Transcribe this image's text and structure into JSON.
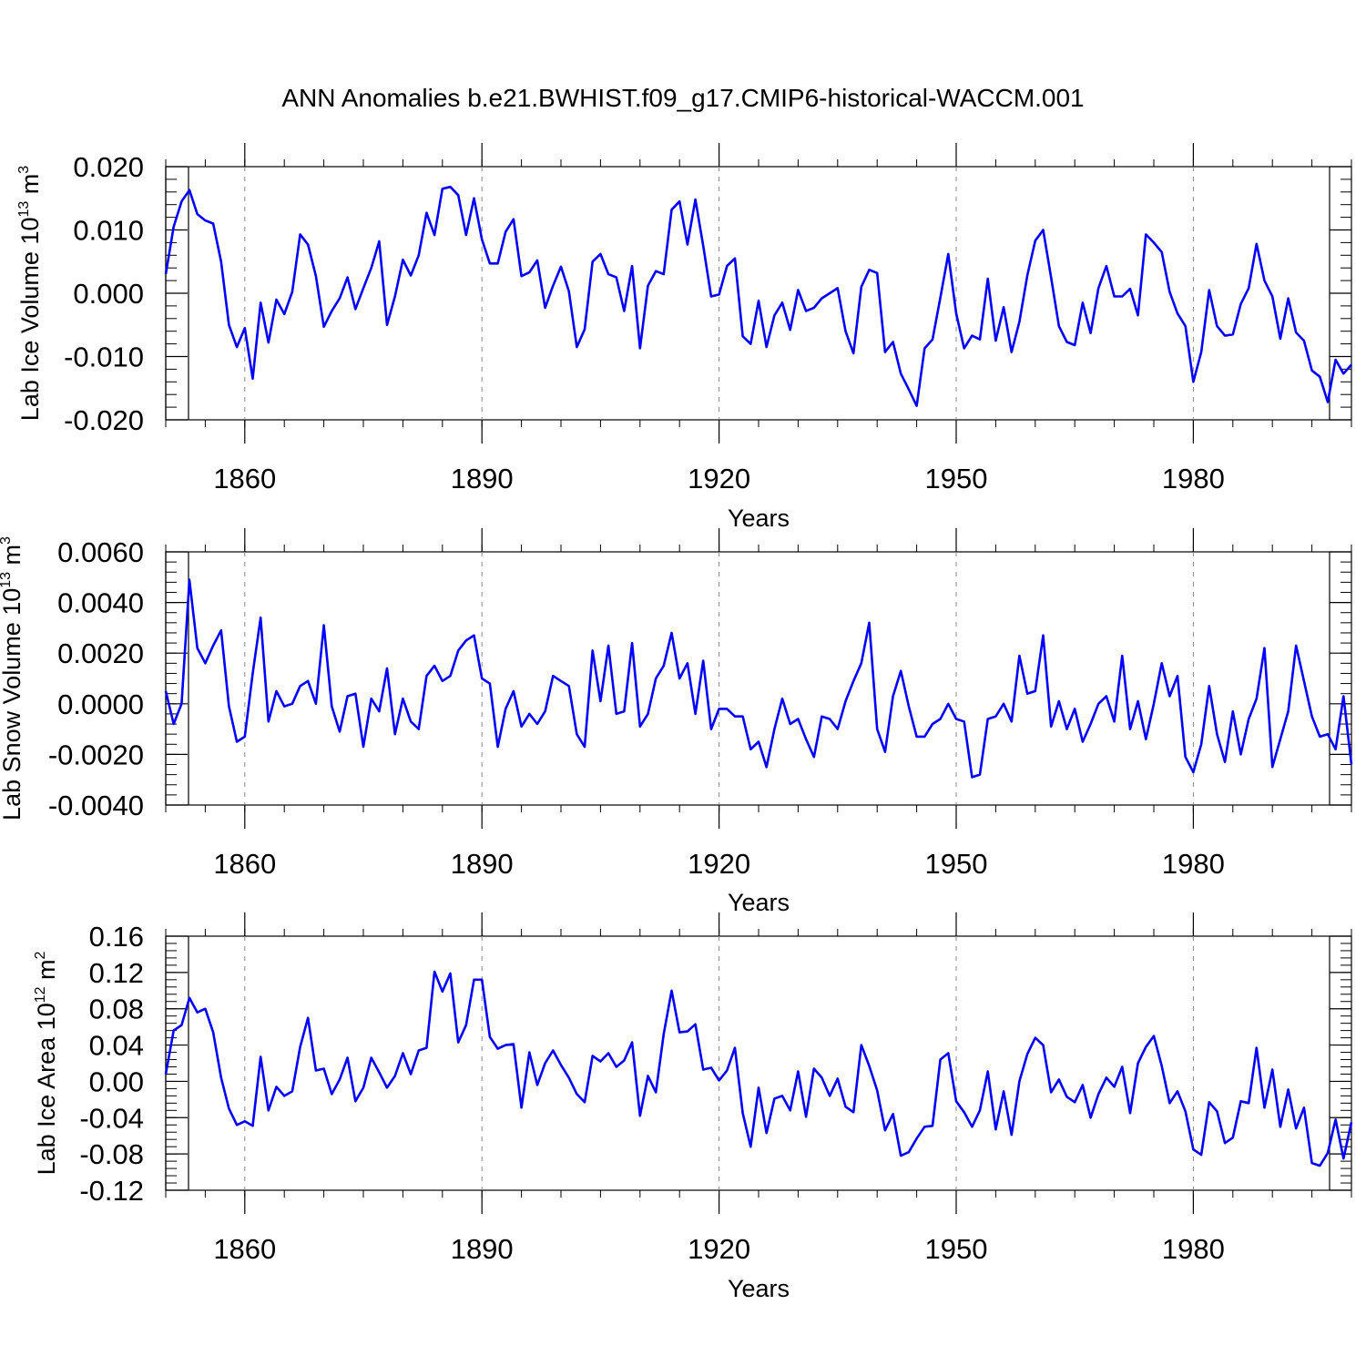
{
  "title": "ANN Anomalies b.e21.BWHIST.f09_g17.CMIP6-historical-WACCM.001",
  "chart_data": [
    {
      "type": "line",
      "ylabel": "Lab Ice Volume 10",
      "ylabel_exp": "13",
      "ylabel_unit": "m",
      "ylabel_unit_exp": "3",
      "xlabel": "Years",
      "xlim": [
        1850,
        2000
      ],
      "ylim": [
        -0.02,
        0.02
      ],
      "yticks": [
        -0.02,
        -0.01,
        0.0,
        0.01,
        0.02
      ],
      "ytick_labels": [
        "-0.020",
        "-0.010",
        "0.000",
        "0.010",
        "0.020"
      ],
      "xticks": [
        1860,
        1890,
        1920,
        1950,
        1980
      ],
      "xtick_labels": [
        "1860",
        "1890",
        "1920",
        "1950",
        "1980"
      ],
      "color": "#0000ff",
      "x_start": 1850,
      "values": [
        0.003,
        0.0105,
        0.0145,
        0.0163,
        0.0125,
        0.0115,
        0.011,
        0.005,
        -0.005,
        -0.0085,
        -0.0055,
        -0.0135,
        -0.0015,
        -0.0078,
        -0.001,
        -0.0033,
        0.0002,
        0.0093,
        0.0077,
        0.0027,
        -0.0053,
        -0.0028,
        -0.0008,
        0.0025,
        -0.0025,
        0.0008,
        0.004,
        0.0082,
        -0.005,
        -0.0005,
        0.0053,
        0.0028,
        0.006,
        0.0127,
        0.0092,
        0.0165,
        0.0168,
        0.0155,
        0.0092,
        0.015,
        0.0085,
        0.0047,
        0.0047,
        0.0097,
        0.0117,
        0.0027,
        0.0033,
        0.0052,
        -0.0023,
        0.0012,
        0.0042,
        0.0003,
        -0.0085,
        -0.0057,
        0.005,
        0.0062,
        0.003,
        0.0025,
        -0.0028,
        0.0043,
        -0.0087,
        0.0012,
        0.0035,
        0.003,
        0.0132,
        0.0145,
        0.0077,
        0.0148,
        0.0075,
        -0.0005,
        -0.0002,
        0.0043,
        0.0055,
        -0.0068,
        -0.008,
        -0.0012,
        -0.0085,
        -0.0035,
        -0.0015,
        -0.0058,
        0.0005,
        -0.0028,
        -0.0023,
        -0.0008,
        0.0,
        0.0008,
        -0.006,
        -0.0095,
        0.001,
        0.0037,
        0.0032,
        -0.0093,
        -0.0077,
        -0.0127,
        -0.0152,
        -0.0178,
        -0.0087,
        -0.0073,
        -0.0007,
        0.0062,
        -0.0032,
        -0.0087,
        -0.0067,
        -0.0073,
        0.0023,
        -0.0075,
        -0.0022,
        -0.0093,
        -0.0045,
        0.0028,
        0.0083,
        0.01,
        0.0025,
        -0.0052,
        -0.0077,
        -0.0082,
        -0.0015,
        -0.0063,
        0.0008,
        0.0043,
        -0.0005,
        -0.0005,
        0.0007,
        -0.0035,
        0.0093,
        0.008,
        0.0065,
        0.0002,
        -0.0032,
        -0.0052,
        -0.014,
        -0.0093,
        0.0005,
        -0.0052,
        -0.0067,
        -0.0065,
        -0.0017,
        0.0008,
        0.0078,
        0.002,
        -0.0005,
        -0.0072,
        -0.0008,
        -0.0062,
        -0.0075,
        -0.0122,
        -0.0132,
        -0.0172,
        -0.0105,
        -0.0127,
        -0.0113
      ]
    },
    {
      "type": "line",
      "ylabel": "Lab Snow Volume 10",
      "ylabel_exp": "13",
      "ylabel_unit": "m",
      "ylabel_unit_exp": "3",
      "xlabel": "Years",
      "xlim": [
        1850,
        2000
      ],
      "ylim": [
        -0.004,
        0.006
      ],
      "yticks": [
        -0.004,
        -0.002,
        0.0,
        0.002,
        0.004,
        0.006
      ],
      "ytick_labels": [
        "-0.0040",
        "-0.0020",
        "0.0000",
        "0.0020",
        "0.0040",
        "0.0060"
      ],
      "xticks": [
        1860,
        1890,
        1920,
        1950,
        1980
      ],
      "xtick_labels": [
        "1860",
        "1890",
        "1920",
        "1950",
        "1980"
      ],
      "color": "#0000ff",
      "x_start": 1850,
      "values": [
        0.0005,
        -0.0008,
        0.0,
        0.0049,
        0.0022,
        0.0016,
        0.0023,
        0.0029,
        -0.0001,
        -0.0015,
        -0.0013,
        0.0012,
        0.0034,
        -0.0007,
        0.0005,
        -0.0001,
        0.0,
        0.0007,
        0.0009,
        0.0,
        0.0031,
        -0.0001,
        -0.0011,
        0.0003,
        0.0004,
        -0.0017,
        0.0002,
        -0.0003,
        0.0014,
        -0.0012,
        0.0002,
        -0.0007,
        -0.001,
        0.0011,
        0.0015,
        0.0009,
        0.0011,
        0.0021,
        0.0025,
        0.0027,
        0.001,
        0.0008,
        -0.0017,
        -0.0002,
        0.0005,
        -0.0009,
        -0.0004,
        -0.0008,
        -0.0003,
        0.0011,
        0.0009,
        0.0007,
        -0.0012,
        -0.0017,
        0.0021,
        0.0001,
        0.0023,
        -0.0004,
        -0.0003,
        0.0024,
        -0.0009,
        -0.0004,
        0.001,
        0.0015,
        0.0028,
        0.001,
        0.0016,
        -0.0004,
        0.0017,
        -0.001,
        -0.0002,
        -0.0002,
        -0.0005,
        -0.0005,
        -0.0018,
        -0.0015,
        -0.0025,
        -0.001,
        0.0002,
        -0.0008,
        -0.0006,
        -0.0014,
        -0.0021,
        -0.0005,
        -0.0006,
        -0.001,
        0.0001,
        0.0009,
        0.0016,
        0.0032,
        -0.001,
        -0.0019,
        0.0003,
        0.0013,
        -0.0001,
        -0.0013,
        -0.0013,
        -0.0008,
        -0.0006,
        0.0,
        -0.0006,
        -0.0007,
        -0.0029,
        -0.0028,
        -0.0006,
        -0.0005,
        0.0,
        -0.0007,
        0.0019,
        0.0004,
        0.0005,
        0.0027,
        -0.0009,
        0.0001,
        -0.001,
        -0.0002,
        -0.0015,
        -0.0008,
        0.0,
        0.0003,
        -0.0007,
        0.0019,
        -0.001,
        0.0001,
        -0.0014,
        0.0,
        0.0016,
        0.0003,
        0.0011,
        -0.0021,
        -0.0027,
        -0.0016,
        0.0007,
        -0.0012,
        -0.0023,
        -0.0003,
        -0.002,
        -0.0006,
        0.0002,
        0.0022,
        -0.0025,
        -0.0014,
        -0.0003,
        0.0023,
        0.0009,
        -0.0005,
        -0.0013,
        -0.0012,
        -0.0018,
        0.0003,
        -0.0024
      ]
    },
    {
      "type": "line",
      "ylabel": "Lab Ice Area 10",
      "ylabel_exp": "12",
      "ylabel_unit": "m",
      "ylabel_unit_exp": "2",
      "xlabel": "Years",
      "xlim": [
        1850,
        2000
      ],
      "ylim": [
        -0.12,
        0.16
      ],
      "yticks": [
        -0.12,
        -0.08,
        -0.04,
        0.0,
        0.04,
        0.08,
        0.12,
        0.16
      ],
      "ytick_labels": [
        "-0.12",
        "-0.08",
        "-0.04",
        "0.00",
        "0.04",
        "0.08",
        "0.12",
        "0.16"
      ],
      "xticks": [
        1860,
        1890,
        1920,
        1950,
        1980
      ],
      "xtick_labels": [
        "1860",
        "1890",
        "1920",
        "1950",
        "1980"
      ],
      "color": "#0000ff",
      "x_start": 1850,
      "values": [
        0.008,
        0.056,
        0.062,
        0.092,
        0.076,
        0.08,
        0.054,
        0.004,
        -0.03,
        -0.048,
        -0.044,
        -0.049,
        0.027,
        -0.032,
        -0.006,
        -0.016,
        -0.011,
        0.038,
        0.07,
        0.012,
        0.014,
        -0.014,
        0.002,
        0.026,
        -0.022,
        -0.007,
        0.026,
        0.01,
        -0.007,
        0.006,
        0.031,
        0.008,
        0.034,
        0.037,
        0.121,
        0.099,
        0.119,
        0.043,
        0.062,
        0.112,
        0.112,
        0.049,
        0.036,
        0.04,
        0.041,
        -0.029,
        0.032,
        -0.004,
        0.02,
        0.034,
        0.018,
        0.004,
        -0.014,
        -0.023,
        0.028,
        0.022,
        0.031,
        0.016,
        0.023,
        0.043,
        -0.038,
        0.006,
        -0.012,
        0.052,
        0.1,
        0.054,
        0.055,
        0.063,
        0.013,
        0.015,
        0.001,
        0.012,
        0.037,
        -0.035,
        -0.072,
        -0.007,
        -0.057,
        -0.019,
        -0.016,
        -0.032,
        0.011,
        -0.039,
        0.014,
        0.004,
        -0.016,
        0.003,
        -0.028,
        -0.034,
        0.04,
        0.017,
        -0.01,
        -0.054,
        -0.036,
        -0.082,
        -0.078,
        -0.063,
        -0.05,
        -0.049,
        0.024,
        0.031,
        -0.022,
        -0.034,
        -0.05,
        -0.032,
        0.011,
        -0.053,
        -0.011,
        -0.059,
        0.0,
        0.03,
        0.048,
        0.04,
        -0.012,
        0.002,
        -0.017,
        -0.023,
        -0.004,
        -0.04,
        -0.014,
        0.004,
        -0.006,
        0.016,
        -0.035,
        0.02,
        0.038,
        0.05,
        0.017,
        -0.024,
        -0.011,
        -0.033,
        -0.075,
        -0.081,
        -0.023,
        -0.033,
        -0.068,
        -0.062,
        -0.022,
        -0.024,
        0.037,
        -0.029,
        0.013,
        -0.05,
        -0.009,
        -0.052,
        -0.029,
        -0.09,
        -0.093,
        -0.079,
        -0.042,
        -0.085,
        -0.045
      ]
    }
  ]
}
